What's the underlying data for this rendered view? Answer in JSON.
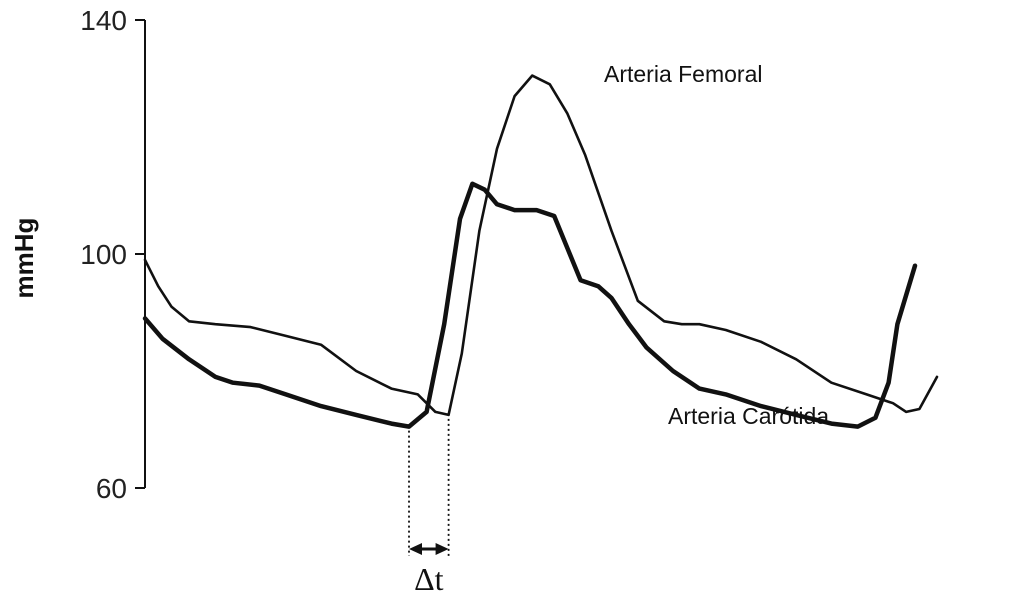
{
  "chart_data": {
    "type": "line",
    "ylabel": "mmHg",
    "ylim": [
      60,
      140
    ],
    "yticks": [
      60,
      100,
      140
    ],
    "xlim": [
      0,
      1
    ],
    "grid": false,
    "series": [
      {
        "name": "Arteria Carótida",
        "x": [
          0,
          0.02,
          0.05,
          0.08,
          0.1,
          0.13,
          0.16,
          0.2,
          0.24,
          0.28,
          0.3,
          0.32,
          0.34,
          0.358,
          0.372,
          0.386,
          0.4,
          0.42,
          0.445,
          0.465,
          0.48,
          0.495,
          0.515,
          0.53,
          0.55,
          0.57,
          0.6,
          0.63,
          0.66,
          0.7,
          0.74,
          0.78,
          0.81,
          0.83,
          0.845,
          0.855,
          0.875
        ],
        "values": [
          89,
          85.5,
          82,
          79,
          78,
          77.5,
          76,
          74,
          72.5,
          71,
          70.5,
          73,
          88,
          106,
          112,
          111,
          108.5,
          107.5,
          107.5,
          106.5,
          101,
          95.5,
          94.5,
          92.5,
          88,
          84,
          80,
          77,
          76,
          74,
          72.5,
          71,
          70.5,
          72,
          78,
          88,
          98
        ]
      },
      {
        "name": "Arteria Femoral",
        "x": [
          0,
          0.015,
          0.03,
          0.05,
          0.08,
          0.12,
          0.16,
          0.2,
          0.24,
          0.28,
          0.31,
          0.33,
          0.345,
          0.36,
          0.38,
          0.4,
          0.42,
          0.44,
          0.46,
          0.48,
          0.5,
          0.53,
          0.56,
          0.59,
          0.61,
          0.63,
          0.66,
          0.7,
          0.74,
          0.78,
          0.82,
          0.85,
          0.865,
          0.88,
          0.9
        ],
        "values": [
          99,
          94.5,
          91,
          88.5,
          88,
          87.5,
          86,
          84.5,
          80,
          77,
          76,
          73,
          72.5,
          83,
          104,
          118,
          127,
          130.5,
          129,
          124,
          117,
          104,
          92,
          88.5,
          88,
          88,
          87,
          85,
          82,
          78,
          76,
          74.5,
          73,
          73.5,
          79
        ]
      }
    ],
    "annotations": [
      {
        "label": "Δt",
        "from_x": 0.3,
        "to_x": 0.345
      }
    ]
  }
}
